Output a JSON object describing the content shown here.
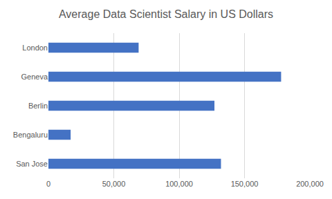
{
  "chart_data": {
    "type": "bar",
    "title": "Average Data Scientist Salary in US Dollars",
    "orientation": "horizontal",
    "categories": [
      "London",
      "Geneva",
      "Berlin",
      "Bengaluru",
      "San Jose"
    ],
    "values": [
      69000,
      178000,
      127000,
      17000,
      132000
    ],
    "color": "#4472c4",
    "xlim": [
      0,
      200000
    ],
    "xticks": [
      0,
      {
        "value": 50000,
        "label": "50,000"
      },
      {
        "value": 100000,
        "label": "100,000"
      },
      {
        "value": 150000,
        "label": "150,000"
      },
      {
        "value": 200000,
        "label": "200,000"
      }
    ],
    "grid": true
  }
}
